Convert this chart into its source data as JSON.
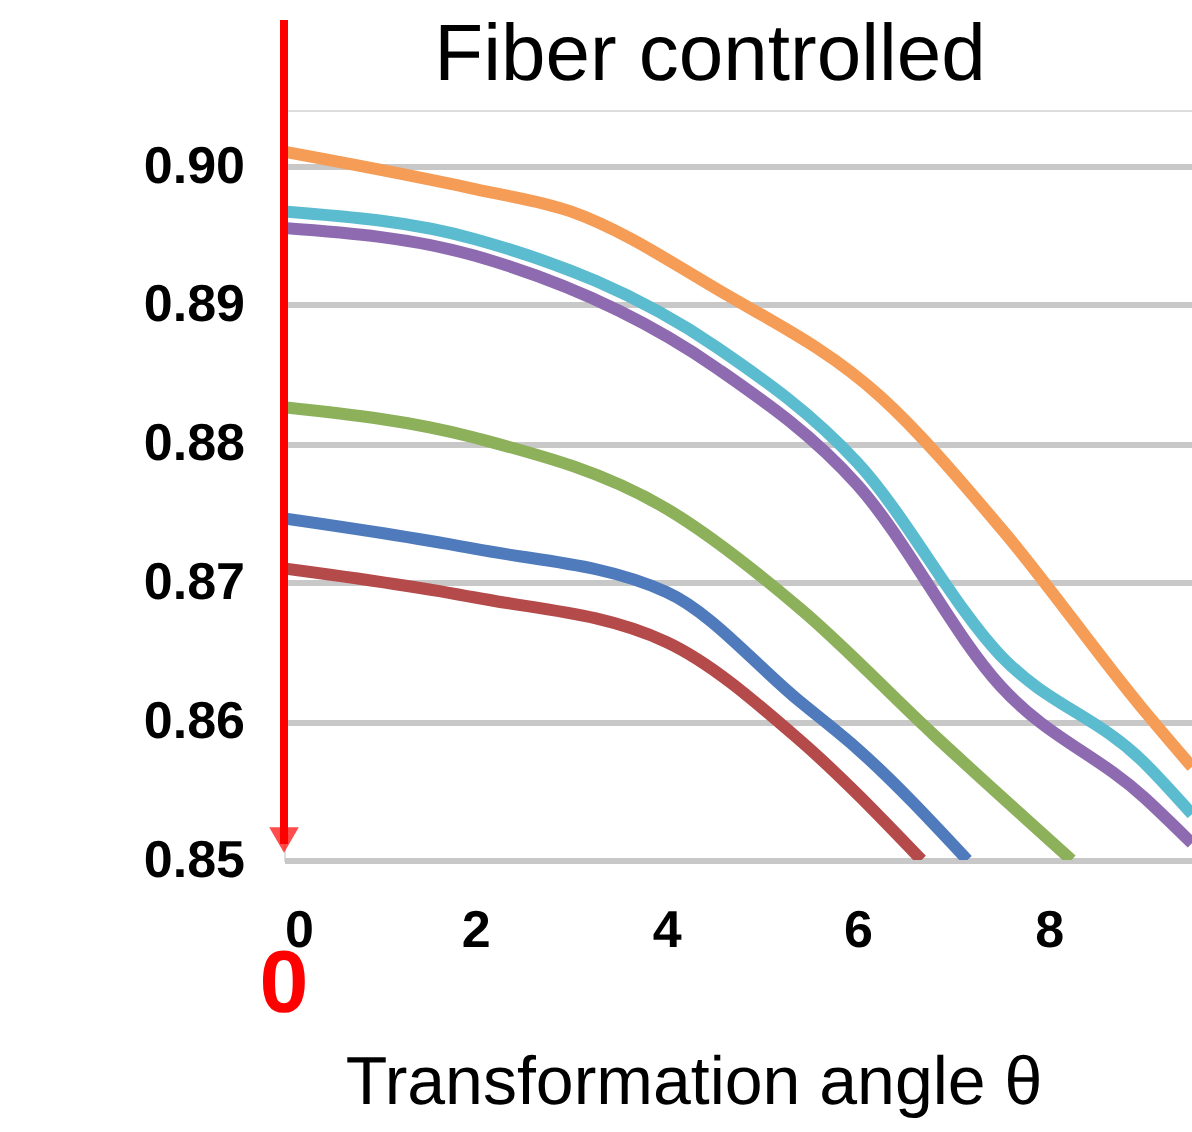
{
  "chart_data": {
    "type": "line",
    "title": "Fiber controlled",
    "xlabel": "Transformation angle θ",
    "xlim": [
      0,
      9.5
    ],
    "xticks": [
      0,
      2,
      4,
      6,
      8
    ],
    "ylim": [
      0.85,
      0.904
    ],
    "yticks": [
      {
        "value": 0.85,
        "label": "0.85"
      },
      {
        "value": 0.86,
        "label": "0.86"
      },
      {
        "value": 0.87,
        "label": "0.87"
      },
      {
        "value": 0.88,
        "label": "0.88"
      },
      {
        "value": 0.89,
        "label": "0.89"
      },
      {
        "value": 0.9,
        "label": "0.90"
      }
    ],
    "grid": "y",
    "legend": false,
    "marker": "none",
    "line_style": "solid",
    "annotations": [
      "0"
    ],
    "series": [
      {
        "color": "#f59d56",
        "x": [
          0,
          2,
          3,
          4.53,
          6.25,
          7.5,
          8.97,
          9.5
        ],
        "values": [
          0.901,
          0.8983,
          0.8967,
          0.8911,
          0.8833,
          0.8739,
          0.861,
          0.8567
        ]
      },
      {
        "color": "#5bbcd0",
        "x": [
          0,
          2,
          4.53,
          6,
          7.5,
          9,
          9.5
        ],
        "values": [
          0.8967,
          0.8947,
          0.8869,
          0.8786,
          0.8647,
          0.857,
          0.8533
        ]
      },
      {
        "color": "#8e6bb0",
        "x": [
          0,
          2,
          4.53,
          6,
          7.5,
          9,
          9.5
        ],
        "values": [
          0.8955,
          0.8935,
          0.8854,
          0.877,
          0.8625,
          0.8545,
          0.8512
        ]
      },
      {
        "color": "#8db05a",
        "x": [
          0,
          2,
          4,
          5.4,
          6.8,
          8.24
        ],
        "values": [
          0.8826,
          0.8804,
          0.8753,
          0.8681,
          0.859,
          0.85
        ]
      },
      {
        "color": "#4f7bbd",
        "x": [
          0,
          2,
          4,
          5.4,
          6,
          7.15
        ],
        "values": [
          0.8746,
          0.8724,
          0.8693,
          0.8614,
          0.858,
          0.85
        ]
      },
      {
        "color": "#b54a4a",
        "x": [
          0,
          2,
          4,
          5.4,
          6.67
        ],
        "values": [
          0.871,
          0.8689,
          0.8657,
          0.8586,
          0.85
        ]
      }
    ]
  }
}
